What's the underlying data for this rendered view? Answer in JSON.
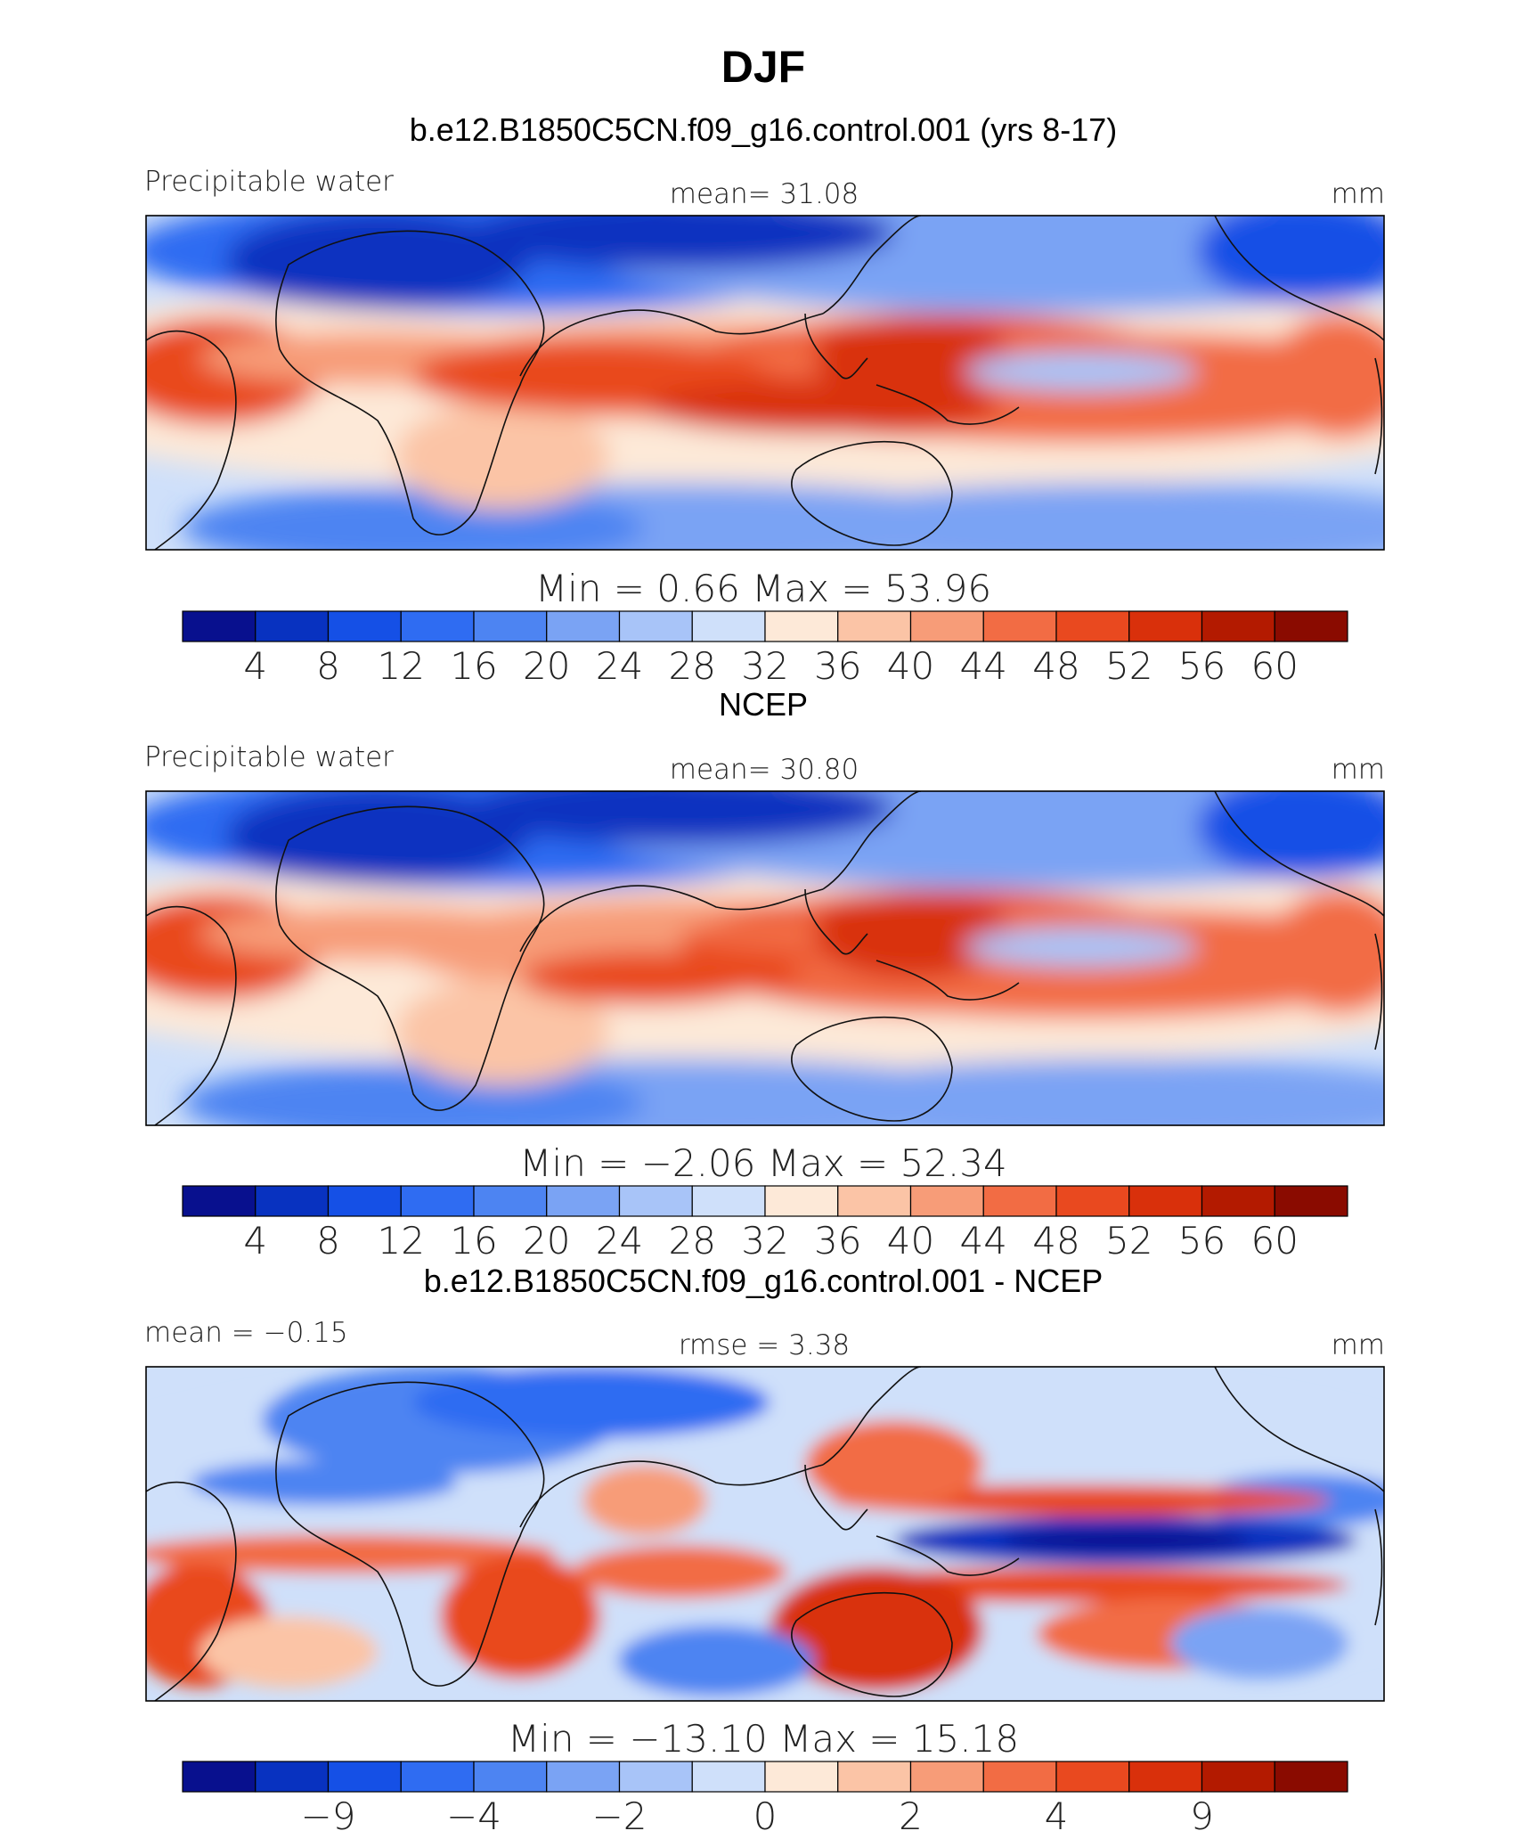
{
  "chart_data": {
    "type": "heatmap",
    "title": "DJF",
    "panels": [
      {
        "subtitle": "b.e12.B1850C5CN.f09_g16.control.001 (yrs 8-17)",
        "left_label": "Precipitable water",
        "center_label": "mean=   31.08",
        "units": "mm",
        "stats": "Min  =     0.66  Max  =    53.96",
        "colorbar_ticks": [
          "4",
          "8",
          "12",
          "16",
          "20",
          "24",
          "28",
          "32",
          "36",
          "40",
          "44",
          "48",
          "52",
          "56",
          "60"
        ],
        "field_pattern": "absolute"
      },
      {
        "subtitle": "NCEP",
        "left_label": "Precipitable water",
        "center_label": "mean=   30.80",
        "units": "mm",
        "stats": "Min  =   −2.06  Max  =    52.34",
        "colorbar_ticks": [
          "4",
          "8",
          "12",
          "16",
          "20",
          "24",
          "28",
          "32",
          "36",
          "40",
          "44",
          "48",
          "52",
          "56",
          "60"
        ],
        "field_pattern": "absolute"
      },
      {
        "subtitle": "b.e12.B1850C5CN.f09_g16.control.001 - NCEP",
        "left_label": "mean  =   −0.15",
        "center_label": "rmse  =     3.38",
        "units": "mm",
        "stats": "Min  =  −13.10  Max  =    15.18",
        "colorbar_ticks": [
          "−9",
          "−4",
          "−2",
          "0",
          "2",
          "4",
          "9"
        ],
        "field_pattern": "difference"
      }
    ]
  },
  "palette": [
    "#08108e",
    "#0832c0",
    "#1550e6",
    "#2f6cf2",
    "#4d84f2",
    "#7aa3f4",
    "#a8c4f8",
    "#cfe0fa",
    "#fde9d8",
    "#fbc4a6",
    "#f79c78",
    "#f26c44",
    "#e9491f",
    "#d9300b",
    "#b31a00",
    "#8a0b00"
  ]
}
